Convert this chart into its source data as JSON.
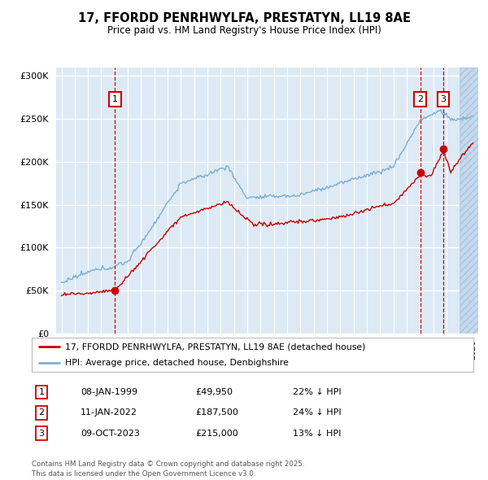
{
  "title1": "17, FFORDD PENRHWYLFA, PRESTATYN, LL19 8AE",
  "title2": "Price paid vs. HM Land Registry's House Price Index (HPI)",
  "background_color": "#ffffff",
  "plot_bg_color": "#ddeaf5",
  "grid_color": "#ffffff",
  "red_line_color": "#cc0000",
  "blue_line_color": "#7aaed6",
  "sale_marker_color": "#cc0000",
  "vline_color": "#cc0000",
  "legend_label_red": "17, FFORDD PENRHWYLFA, PRESTATYN, LL19 8AE (detached house)",
  "legend_label_blue": "HPI: Average price, detached house, Denbighshire",
  "sale1_date": "08-JAN-1999",
  "sale1_price": 49950,
  "sale1_hpi": "22% ↓ HPI",
  "sale2_date": "11-JAN-2022",
  "sale2_price": 187500,
  "sale2_hpi": "24% ↓ HPI",
  "sale3_date": "09-OCT-2023",
  "sale3_price": 215000,
  "sale3_hpi": "13% ↓ HPI",
  "footer": "Contains HM Land Registry data © Crown copyright and database right 2025.\nThis data is licensed under the Open Government Licence v3.0.",
  "ylim": [
    0,
    310000
  ],
  "xlim_start": 1994.6,
  "xlim_end": 2026.4,
  "hatch_start": 2025.0
}
